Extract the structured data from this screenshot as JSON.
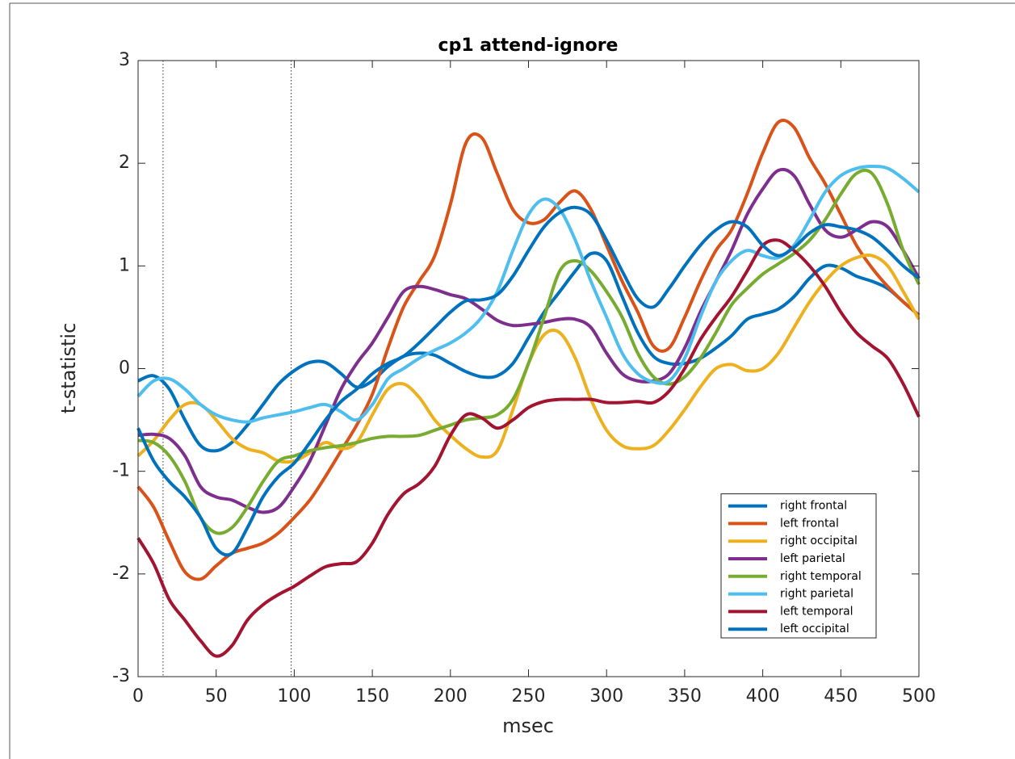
{
  "chart_data": {
    "type": "line",
    "title": "cp1 attend-ignore",
    "xlabel": "msec",
    "ylabel": "t-statistic",
    "x": [
      0,
      10,
      20,
      30,
      40,
      50,
      60,
      70,
      80,
      90,
      100,
      110,
      120,
      130,
      140,
      150,
      160,
      170,
      180,
      190,
      200,
      210,
      220,
      230,
      240,
      250,
      260,
      270,
      280,
      290,
      300,
      310,
      320,
      330,
      340,
      350,
      360,
      370,
      380,
      390,
      400,
      410,
      420,
      430,
      440,
      450,
      460,
      470,
      480,
      490,
      500
    ],
    "xlim": [
      0,
      500
    ],
    "xticks": [
      0,
      50,
      100,
      150,
      200,
      250,
      300,
      350,
      400,
      450,
      500
    ],
    "ylim": [
      -3,
      3
    ],
    "yticks": [
      -3,
      -2,
      -1,
      0,
      1,
      2,
      3
    ],
    "vlines": [
      16,
      98
    ],
    "legend": "southeast",
    "series": [
      {
        "name": "right frontal",
        "color": "#0072BD",
        "values": [
          -0.12,
          -0.07,
          -0.2,
          -0.5,
          -0.75,
          -0.8,
          -0.72,
          -0.55,
          -0.35,
          -0.15,
          -0.02,
          0.06,
          0.06,
          -0.05,
          -0.18,
          -0.12,
          0.02,
          0.12,
          0.15,
          0.13,
          0.05,
          -0.03,
          -0.08,
          -0.07,
          0.05,
          0.3,
          0.55,
          0.75,
          0.95,
          1.12,
          1.05,
          0.7,
          0.35,
          0.12,
          0.05,
          0.05,
          0.1,
          0.2,
          0.32,
          0.48,
          0.53,
          0.58,
          0.7,
          0.88,
          1.0,
          0.98,
          0.9,
          0.85,
          0.78,
          0.65,
          0.52
        ]
      },
      {
        "name": "left frontal",
        "color": "#D95319",
        "values": [
          -1.15,
          -1.35,
          -1.68,
          -1.98,
          -2.05,
          -1.92,
          -1.8,
          -1.75,
          -1.7,
          -1.6,
          -1.45,
          -1.28,
          -1.05,
          -0.8,
          -0.55,
          -0.25,
          0.2,
          0.6,
          0.85,
          1.1,
          1.6,
          2.2,
          2.25,
          1.9,
          1.55,
          1.42,
          1.45,
          1.62,
          1.73,
          1.55,
          1.2,
          0.85,
          0.55,
          0.22,
          0.2,
          0.5,
          0.85,
          1.15,
          1.35,
          1.7,
          2.1,
          2.4,
          2.35,
          2.05,
          1.8,
          1.5,
          1.2,
          0.98,
          0.8,
          0.65,
          0.52
        ]
      },
      {
        "name": "right occipital",
        "color": "#EDB120",
        "values": [
          -0.85,
          -0.7,
          -0.5,
          -0.35,
          -0.35,
          -0.5,
          -0.68,
          -0.78,
          -0.82,
          -0.9,
          -0.9,
          -0.82,
          -0.72,
          -0.78,
          -0.72,
          -0.45,
          -0.2,
          -0.15,
          -0.28,
          -0.5,
          -0.65,
          -0.78,
          -0.86,
          -0.8,
          -0.4,
          0.05,
          0.33,
          0.35,
          0.1,
          -0.3,
          -0.6,
          -0.75,
          -0.78,
          -0.75,
          -0.6,
          -0.4,
          -0.18,
          0.0,
          0.04,
          -0.02,
          0.0,
          0.15,
          0.4,
          0.65,
          0.85,
          1.0,
          1.08,
          1.1,
          1.0,
          0.75,
          0.48
        ]
      },
      {
        "name": "left parietal",
        "color": "#7E2F8E",
        "values": [
          -0.65,
          -0.64,
          -0.68,
          -0.85,
          -1.15,
          -1.25,
          -1.28,
          -1.35,
          -1.4,
          -1.35,
          -1.15,
          -0.9,
          -0.55,
          -0.2,
          0.05,
          0.25,
          0.5,
          0.75,
          0.8,
          0.77,
          0.72,
          0.68,
          0.58,
          0.47,
          0.42,
          0.43,
          0.45,
          0.48,
          0.48,
          0.4,
          0.15,
          -0.05,
          -0.12,
          -0.12,
          -0.05,
          0.2,
          0.55,
          0.85,
          1.15,
          1.5,
          1.75,
          1.93,
          1.88,
          1.6,
          1.35,
          1.28,
          1.35,
          1.43,
          1.38,
          1.15,
          0.88
        ]
      },
      {
        "name": "right temporal",
        "color": "#77AC30",
        "values": [
          -0.7,
          -0.72,
          -0.85,
          -1.1,
          -1.45,
          -1.6,
          -1.55,
          -1.35,
          -1.1,
          -0.9,
          -0.85,
          -0.8,
          -0.77,
          -0.75,
          -0.72,
          -0.68,
          -0.66,
          -0.66,
          -0.65,
          -0.6,
          -0.55,
          -0.5,
          -0.48,
          -0.45,
          -0.3,
          0.05,
          0.5,
          0.95,
          1.05,
          0.95,
          0.75,
          0.5,
          0.15,
          -0.08,
          -0.15,
          -0.08,
          0.1,
          0.35,
          0.62,
          0.78,
          0.92,
          1.02,
          1.12,
          1.25,
          1.45,
          1.7,
          1.9,
          1.9,
          1.6,
          1.15,
          0.82
        ]
      },
      {
        "name": "right parietal",
        "color": "#4DBEEE",
        "values": [
          -0.27,
          -0.12,
          -0.1,
          -0.2,
          -0.35,
          -0.45,
          -0.5,
          -0.52,
          -0.48,
          -0.45,
          -0.42,
          -0.38,
          -0.35,
          -0.42,
          -0.5,
          -0.35,
          -0.1,
          0.0,
          0.1,
          0.18,
          0.25,
          0.35,
          0.5,
          0.75,
          1.15,
          1.5,
          1.65,
          1.55,
          1.25,
          0.85,
          0.5,
          0.15,
          -0.05,
          -0.13,
          -0.12,
          0.1,
          0.5,
          0.85,
          1.05,
          1.15,
          1.1,
          1.08,
          1.2,
          1.45,
          1.72,
          1.88,
          1.95,
          1.97,
          1.95,
          1.85,
          1.72
        ]
      },
      {
        "name": "left temporal",
        "color": "#A2142F",
        "values": [
          -1.65,
          -1.9,
          -2.25,
          -2.45,
          -2.65,
          -2.8,
          -2.7,
          -2.45,
          -2.3,
          -2.2,
          -2.12,
          -2.02,
          -1.93,
          -1.9,
          -1.88,
          -1.7,
          -1.42,
          -1.22,
          -1.12,
          -0.95,
          -0.65,
          -0.45,
          -0.48,
          -0.58,
          -0.5,
          -0.38,
          -0.32,
          -0.3,
          -0.3,
          -0.3,
          -0.33,
          -0.33,
          -0.32,
          -0.33,
          -0.22,
          0.0,
          0.28,
          0.5,
          0.7,
          0.95,
          1.2,
          1.25,
          1.15,
          1.0,
          0.8,
          0.55,
          0.35,
          0.22,
          0.1,
          -0.15,
          -0.47
        ]
      },
      {
        "name": "left occipital",
        "color": "#0072BD",
        "values": [
          -0.58,
          -0.9,
          -1.1,
          -1.25,
          -1.45,
          -1.75,
          -1.8,
          -1.55,
          -1.25,
          -1.05,
          -0.92,
          -0.72,
          -0.5,
          -0.32,
          -0.2,
          -0.05,
          0.05,
          0.12,
          0.25,
          0.4,
          0.55,
          0.66,
          0.67,
          0.72,
          0.9,
          1.15,
          1.38,
          1.52,
          1.57,
          1.5,
          1.25,
          0.95,
          0.68,
          0.6,
          0.78,
          1.0,
          1.2,
          1.35,
          1.43,
          1.38,
          1.2,
          1.1,
          1.18,
          1.32,
          1.4,
          1.38,
          1.35,
          1.28,
          1.15,
          1.0,
          0.88
        ]
      }
    ]
  }
}
